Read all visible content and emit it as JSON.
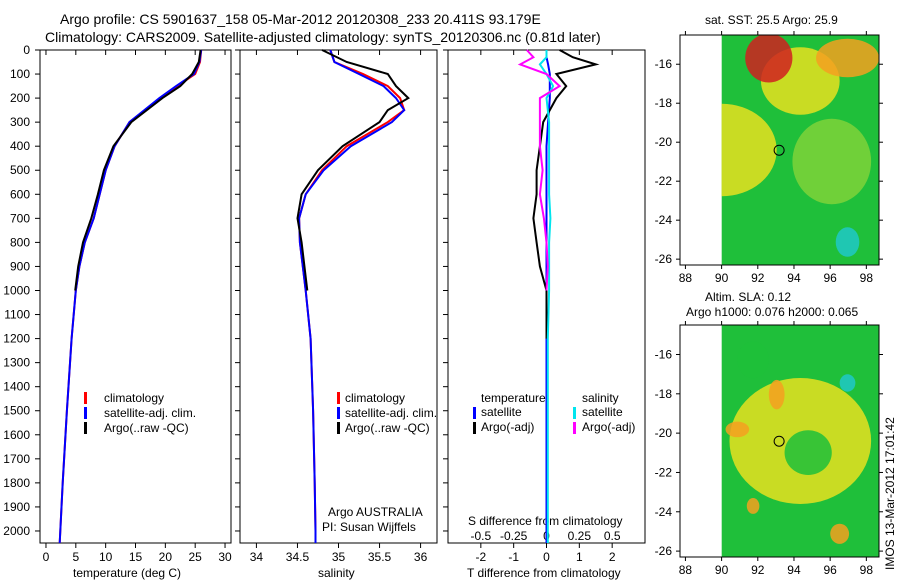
{
  "title_line1": "Argo profile: CS 5901637_158 05-Mar-2012 20120308_233 20.411S 93.179E",
  "title_line2": "Climatology: CARS2009. Satellite-adjusted climatology: synTS_20120306.nc (0.81d later)",
  "credit": "Argo AUSTRALIA",
  "pi": "PI: Susan Wijffels",
  "stamp": "IMOS 13-Mar-2012 17:01:42",
  "colors": {
    "climatology": "#ff0000",
    "satellite": "#0000ff",
    "argo": "#000000",
    "sal_sat": "#00e5ee",
    "sal_argo": "#ff00ff"
  },
  "legend": {
    "clim": "climatology",
    "sat": "satellite-adj. clim.",
    "argo": "Argo(..raw -QC)"
  },
  "diff_legend": {
    "t_head": "temperature",
    "s_head": "salinity",
    "sat": "satellite",
    "argo": "Argo(-adj)"
  },
  "sst_title": "sat. SST: 25.5 Argo: 25.9",
  "sla_title1": "Altim. SLA: 0.12",
  "sla_title2": "Argo h1000: 0.076 h2000: 0.065",
  "chart_data": [
    {
      "type": "line",
      "id": "temperature",
      "xlabel": "temperature (deg C)",
      "ylabel": "",
      "xlim": [
        -1,
        31
      ],
      "ylim": [
        2050,
        0
      ],
      "xticks": [
        0,
        5,
        10,
        15,
        20,
        25,
        30
      ],
      "yticks": [
        0,
        100,
        200,
        300,
        400,
        500,
        600,
        700,
        800,
        900,
        1000,
        1100,
        1200,
        1300,
        1400,
        1500,
        1600,
        1700,
        1800,
        1900,
        2000
      ],
      "depth": [
        0,
        50,
        100,
        150,
        200,
        300,
        400,
        500,
        600,
        700,
        800,
        900,
        1000,
        1200,
        1500,
        1800,
        2000,
        2050
      ],
      "series": [
        {
          "name": "climatology",
          "values": [
            26,
            25.8,
            25,
            22,
            19.2,
            14,
            11.5,
            10,
            9,
            8,
            6.5,
            5.6,
            5,
            4.3,
            3.5,
            2.8,
            2.4,
            2.3
          ]
        },
        {
          "name": "satellite-adj. clim.",
          "values": [
            26,
            25.7,
            24.8,
            21.8,
            19,
            14,
            11.5,
            10,
            9,
            8,
            6.5,
            5.6,
            5,
            4.3,
            3.5,
            2.8,
            2.4,
            2.3
          ]
        },
        {
          "name": "Argo(..raw -QC)",
          "values": [
            25.9,
            25.6,
            24.5,
            22.5,
            19.5,
            14.3,
            11.3,
            9.7,
            8.7,
            7.6,
            6.2,
            5.4,
            4.9
          ]
        }
      ]
    },
    {
      "type": "line",
      "id": "salinity",
      "xlabel": "salinity",
      "xlim": [
        33.8,
        36.2
      ],
      "ylim": [
        2050,
        0
      ],
      "xticks": [
        34,
        34.5,
        35,
        35.5,
        36
      ],
      "depth": [
        0,
        50,
        100,
        150,
        200,
        250,
        300,
        400,
        500,
        600,
        700,
        800,
        1000,
        1200,
        1500,
        1800,
        2000,
        2050
      ],
      "series": [
        {
          "name": "climatology",
          "values": [
            34.9,
            34.95,
            35.3,
            35.6,
            35.75,
            35.8,
            35.6,
            35.1,
            34.8,
            34.6,
            34.52,
            34.53,
            34.6,
            34.66,
            34.69,
            34.71,
            34.72,
            34.72
          ]
        },
        {
          "name": "satellite-adj. clim.",
          "values": [
            34.9,
            34.95,
            35.25,
            35.55,
            35.7,
            35.8,
            35.65,
            35.15,
            34.82,
            34.6,
            34.52,
            34.53,
            34.6,
            34.66,
            34.69,
            34.71,
            34.72,
            34.72
          ]
        },
        {
          "name": "Argo(..raw -QC)",
          "values": [
            34.8,
            35.1,
            35.6,
            35.7,
            35.85,
            35.6,
            35.5,
            35.05,
            34.75,
            34.55,
            34.5,
            34.55,
            34.62
          ]
        }
      ]
    },
    {
      "type": "line",
      "id": "differences",
      "xlabel": "T difference from climatology",
      "x2label": "S difference from climatology",
      "xlim": [
        -3,
        3
      ],
      "x2lim": [
        -0.75,
        0.75
      ],
      "ylim": [
        2050,
        0
      ],
      "xticks": [
        -2,
        -1,
        0,
        1,
        2
      ],
      "x2ticks": [
        "-0.5",
        "-0.25",
        "0",
        "0.25",
        "0.5"
      ],
      "depth": [
        0,
        30,
        60,
        100,
        150,
        200,
        300,
        400,
        500,
        600,
        700,
        800,
        900,
        1000,
        1200,
        1500,
        1800,
        2000,
        2050
      ],
      "series": [
        {
          "name": "temperature satellite",
          "axis": "T",
          "values": [
            0,
            0,
            0.05,
            0.1,
            0.1,
            0.1,
            0.05,
            0,
            0,
            0,
            0,
            0,
            0,
            0,
            0,
            0,
            0,
            0,
            0
          ]
        },
        {
          "name": "temperature Argo(-adj)",
          "axis": "T",
          "values": [
            0.4,
            0.8,
            1.5,
            0.3,
            0.6,
            0.3,
            -0.1,
            -0.2,
            -0.3,
            -0.3,
            -0.4,
            -0.3,
            -0.2,
            0,
            0
          ]
        },
        {
          "name": "salinity satellite",
          "axis": "S",
          "values": [
            0,
            0,
            -0.05,
            0,
            0.05,
            0,
            0.02,
            0.02,
            0.02,
            0.02,
            0.03,
            0.02,
            0.02,
            0.02,
            0.01,
            0.01,
            0.01,
            0.01,
            0.01
          ]
        },
        {
          "name": "salinity Argo(-adj)",
          "axis": "S",
          "values": [
            -0.15,
            -0.1,
            -0.2,
            0,
            0.1,
            -0.05,
            -0.05,
            -0.05,
            -0.03,
            -0.05,
            -0.02,
            0,
            0.01,
            0
          ]
        }
      ]
    },
    {
      "type": "heatmap",
      "id": "sst",
      "xlim": [
        87.7,
        98.7
      ],
      "ylim": [
        -26.3,
        -14.5
      ],
      "xticks": [
        88,
        90,
        92,
        94,
        96,
        98
      ],
      "yticks": [
        -16,
        -18,
        -20,
        -22,
        -24,
        -26
      ],
      "marker": [
        93.179,
        -20.411
      ]
    },
    {
      "type": "heatmap",
      "id": "sla",
      "xlim": [
        87.7,
        98.7
      ],
      "ylim": [
        -26.3,
        -14.5
      ],
      "xticks": [
        88,
        90,
        92,
        94,
        96,
        98
      ],
      "yticks": [
        -16,
        -18,
        -20,
        -22,
        -24,
        -26
      ],
      "marker": [
        93.179,
        -20.411
      ]
    }
  ]
}
